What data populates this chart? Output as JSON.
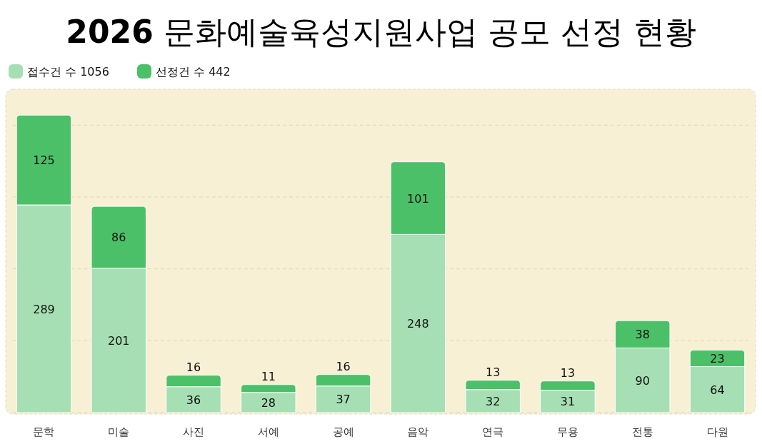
{
  "chart_data": {
    "type": "bar",
    "title": "2026 문화예술육성지원사업 공모 선정 현황",
    "categories": [
      "문학",
      "미술",
      "사진",
      "서예",
      "공예",
      "음악",
      "연극",
      "무용",
      "전통",
      "다원"
    ],
    "series": [
      {
        "name": "접수건 수 1056",
        "color": "#a5dfb3",
        "values": [
          289,
          201,
          36,
          28,
          37,
          248,
          32,
          31,
          90,
          64
        ]
      },
      {
        "name": "선정건 수 442",
        "color": "#4cc068",
        "values": [
          125,
          86,
          16,
          11,
          16,
          101,
          13,
          13,
          38,
          23
        ]
      }
    ],
    "stacked": true,
    "data_labels": true,
    "ylim": [
      0,
      450
    ],
    "yticks": [
      {
        "value": 0,
        "label": null
      },
      {
        "value": 100,
        "label": null
      },
      {
        "value": 200,
        "label": null
      },
      {
        "value": 300,
        "label": null
      },
      {
        "value": 400,
        "label": null
      }
    ],
    "grid": "y",
    "tick_labels": "x",
    "legend": "top left"
  }
}
